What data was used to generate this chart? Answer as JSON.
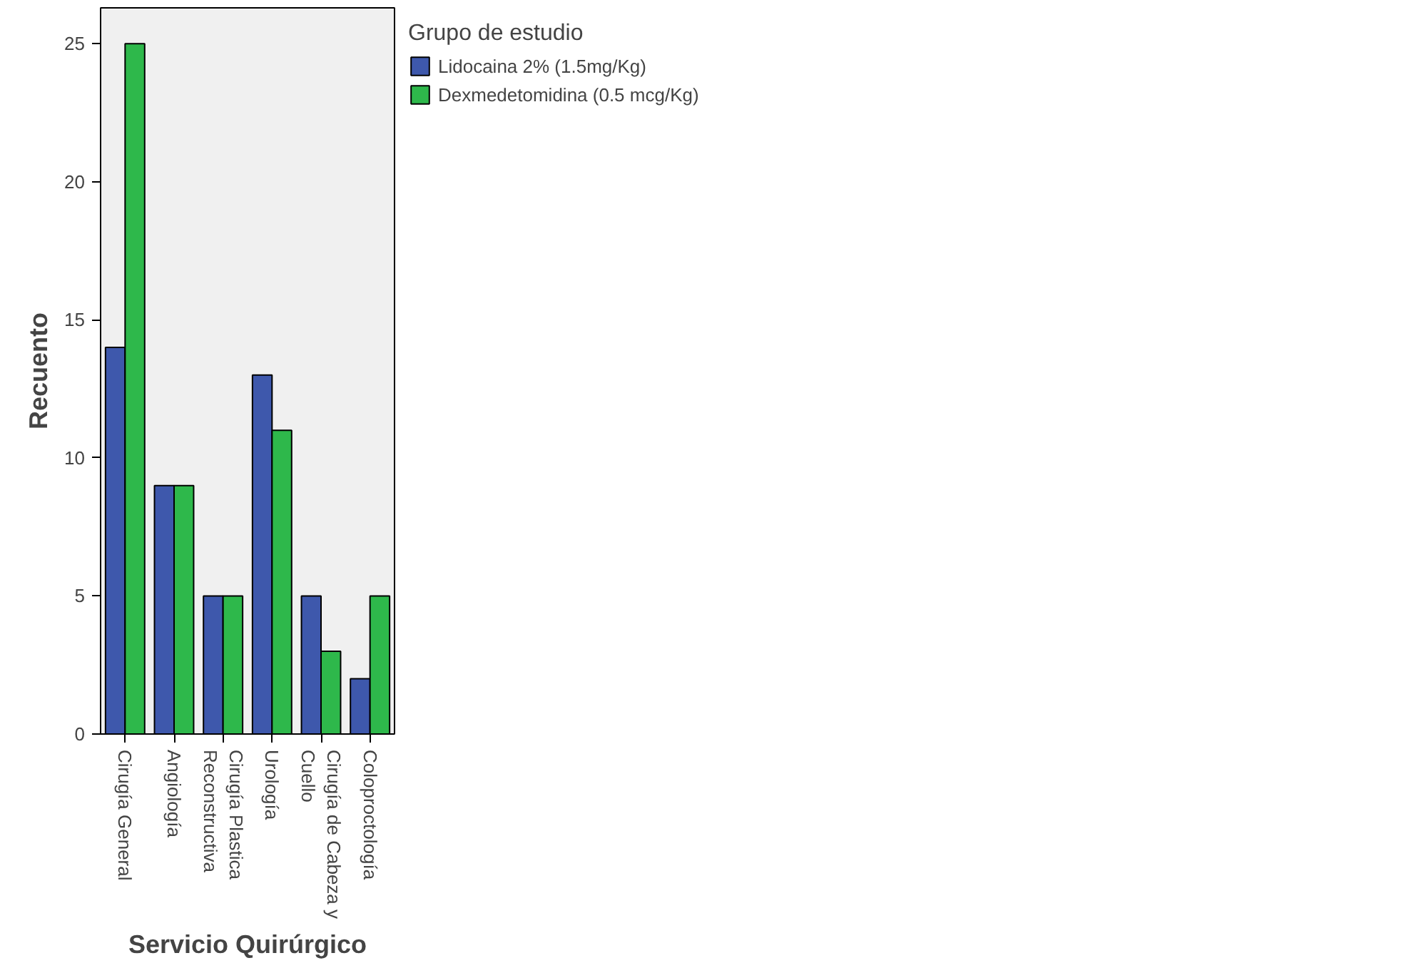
{
  "chart_data": {
    "type": "bar",
    "xlabel": "Servicio Quirúrgico",
    "ylabel": "Recuento",
    "legend_title": "Grupo de estudio",
    "categories": [
      "Cirugía General",
      "Angiología",
      "Cirugía Plastica\nReconstructiva",
      "Urología",
      "Cirugía de Cabeza y\nCuello",
      "Coloproctología"
    ],
    "series": [
      {
        "name": "Lidocaina 2% (1.5mg/Kg)",
        "color": "#3e58ac",
        "values": [
          14,
          9,
          5,
          13,
          5,
          2
        ]
      },
      {
        "name": "Dexmedetomidina (0.5 mcg/Kg)",
        "color": "#2eb84b",
        "values": [
          25,
          9,
          5,
          11,
          3,
          5
        ]
      }
    ],
    "ylim": [
      0,
      26.3
    ],
    "yticks": [
      0,
      5,
      10,
      15,
      20,
      25
    ],
    "grid": false,
    "legend": "right"
  }
}
